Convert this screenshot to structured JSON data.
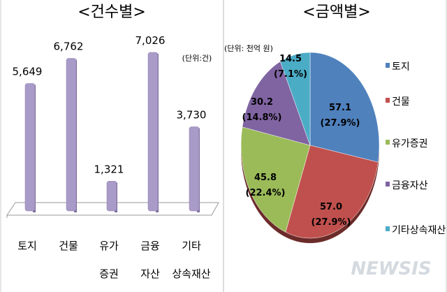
{
  "chart_data": [
    {
      "type": "bar",
      "title": "<건수별>",
      "unit_note": "(단위:건)",
      "categories": [
        "토지",
        "건물",
        "유가|증권",
        "금융|자산",
        "기타|상속재산"
      ],
      "values": [
        5649,
        6762,
        1321,
        7026,
        3730
      ],
      "value_labels": [
        "5,649",
        "6,762",
        "1,321",
        "7,026",
        "3,730"
      ],
      "ylim": [
        0,
        7026
      ],
      "grid": false,
      "bar_color": "#A99BC8"
    },
    {
      "type": "pie",
      "title": "<금액별>",
      "unit_note": "(단위: 천억 원)",
      "legend_position": "right",
      "slices": [
        {
          "name": "토지",
          "value": 57.1,
          "percent_label": "(27.9%)",
          "value_label": "57.1",
          "color": "#4F81BD"
        },
        {
          "name": "건물",
          "value": 57.0,
          "percent_label": "(27.9%)",
          "value_label": "57.0",
          "color": "#C0504D"
        },
        {
          "name": "유가증권",
          "value": 45.8,
          "percent_label": "(22.4%)",
          "value_label": "45.8",
          "color": "#9BBB59"
        },
        {
          "name": "금융자산",
          "value": 30.2,
          "percent_label": "(14.8%)",
          "value_label": "30.2",
          "color": "#8064A2"
        },
        {
          "name": "기타상속재산",
          "value": 14.5,
          "percent_label": "(7.1%)",
          "value_label": "14.5",
          "color": "#4BACC6"
        }
      ]
    }
  ],
  "watermark": "NEWSIS"
}
